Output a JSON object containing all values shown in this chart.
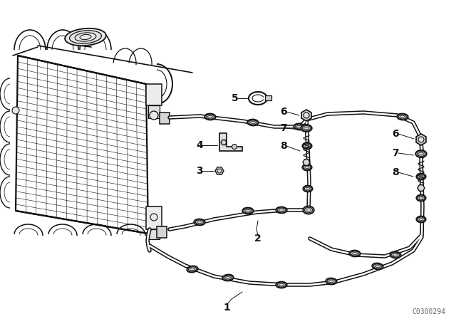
{
  "bg_color": "#ffffff",
  "line_color": "#111111",
  "watermark": "C0300294",
  "figsize": [
    6.4,
    4.48
  ],
  "dpi": 100
}
